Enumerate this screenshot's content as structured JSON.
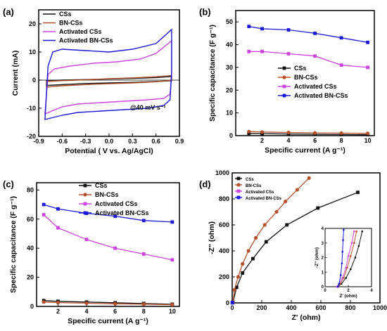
{
  "chart_data": [
    {
      "panel": "(a)",
      "type": "line",
      "xlabel": "Potential ( V vs. Ag/AgCl)",
      "ylabel": "Current (mA)",
      "xlim": [
        -0.9,
        0.9
      ],
      "ylim": [
        -20,
        25
      ],
      "xticks": [
        "-0.9",
        "-0.6",
        "-0.3",
        "0.0",
        "0.3",
        "0.6",
        "0.9"
      ],
      "yticks": [
        "-20",
        "-10",
        "0",
        "10",
        "20"
      ],
      "annotation": "@40 mV s⁻¹",
      "legend_position": "top-left",
      "series": [
        {
          "name": "CSs",
          "color": "#111111",
          "anodic": [
            [
              -0.8,
              -0.2
            ],
            [
              -0.6,
              0.0
            ],
            [
              -0.3,
              0.2
            ],
            [
              0.0,
              0.4
            ],
            [
              0.3,
              0.6
            ],
            [
              0.6,
              0.9
            ],
            [
              0.8,
              1.3
            ]
          ],
          "cathodic": [
            [
              0.8,
              -0.2
            ],
            [
              0.6,
              -0.5
            ],
            [
              0.3,
              -0.8
            ],
            [
              0.0,
              -1.0
            ],
            [
              -0.3,
              -1.2
            ],
            [
              -0.6,
              -1.6
            ],
            [
              -0.8,
              -1.9
            ]
          ]
        },
        {
          "name": "BN-CSs",
          "color": "#b5512b",
          "anodic": [
            [
              -0.8,
              -0.5
            ],
            [
              -0.6,
              -0.2
            ],
            [
              -0.3,
              0.1
            ],
            [
              0.0,
              0.5
            ],
            [
              0.3,
              0.8
            ],
            [
              0.6,
              1.2
            ],
            [
              0.8,
              1.6
            ]
          ],
          "cathodic": [
            [
              0.8,
              0.0
            ],
            [
              0.6,
              -0.6
            ],
            [
              0.3,
              -1.0
            ],
            [
              0.0,
              -1.3
            ],
            [
              -0.3,
              -1.6
            ],
            [
              -0.6,
              -2.0
            ],
            [
              -0.8,
              -2.5
            ]
          ]
        },
        {
          "name": "Activated CSs",
          "color": "#cc44dd",
          "anodic": [
            [
              -0.82,
              -12
            ],
            [
              -0.78,
              2
            ],
            [
              -0.7,
              4
            ],
            [
              -0.5,
              5
            ],
            [
              -0.2,
              6
            ],
            [
              0.1,
              6.5
            ],
            [
              0.4,
              7.5
            ],
            [
              0.6,
              9.5
            ],
            [
              0.8,
              14
            ]
          ],
          "cathodic": [
            [
              0.8,
              2
            ],
            [
              0.78,
              -5
            ],
            [
              0.7,
              -6.5
            ],
            [
              0.5,
              -7
            ],
            [
              0.2,
              -7.5
            ],
            [
              -0.1,
              -8
            ],
            [
              -0.4,
              -8.5
            ],
            [
              -0.6,
              -9.5
            ],
            [
              -0.82,
              -12
            ]
          ]
        },
        {
          "name": "Activated BN-CSs",
          "color": "#1a1ad6",
          "anodic": [
            [
              -0.82,
              -14
            ],
            [
              -0.78,
              5
            ],
            [
              -0.72,
              10
            ],
            [
              -0.6,
              11
            ],
            [
              -0.3,
              10.5
            ],
            [
              0.0,
              10
            ],
            [
              0.3,
              11
            ],
            [
              0.6,
              13
            ],
            [
              0.8,
              18
            ]
          ],
          "cathodic": [
            [
              0.8,
              3
            ],
            [
              0.78,
              -7
            ],
            [
              0.7,
              -9
            ],
            [
              0.5,
              -10
            ],
            [
              0.2,
              -10.5
            ],
            [
              -0.1,
              -11
            ],
            [
              -0.4,
              -11.5
            ],
            [
              -0.6,
              -12.5
            ],
            [
              -0.82,
              -14
            ]
          ]
        }
      ]
    },
    {
      "panel": "(b)",
      "type": "line",
      "xlabel": "Specific current (A g⁻¹)",
      "ylabel": "Specific capacitance (F g⁻¹)",
      "xlim": [
        0,
        10.5
      ],
      "ylim": [
        0,
        55
      ],
      "xticks": [
        "2",
        "4",
        "6",
        "8",
        "10"
      ],
      "yticks": [
        "0",
        "10",
        "20",
        "30",
        "40",
        "50"
      ],
      "legend_position": "center-right",
      "x": [
        1,
        2,
        4,
        6,
        8,
        10
      ],
      "series": [
        {
          "name": "CSs",
          "color": "#111111",
          "marker": "square",
          "values": [
            1.0,
            0.9,
            0.7,
            0.6,
            0.5,
            0.4
          ]
        },
        {
          "name": "BN-CSs",
          "color": "#b5512b",
          "marker": "circle",
          "values": [
            1.8,
            1.6,
            1.4,
            1.2,
            1.1,
            1.0
          ]
        },
        {
          "name": "Activated CSs",
          "color": "#cc44dd",
          "marker": "square",
          "values": [
            37,
            37,
            36,
            35,
            31,
            30
          ]
        },
        {
          "name": "Activated BN-CSs",
          "color": "#1a1ad6",
          "marker": "square",
          "values": [
            48,
            47,
            46.5,
            45,
            43,
            41
          ]
        }
      ]
    },
    {
      "panel": "(c)",
      "type": "line",
      "xlabel": "Specific current (A g⁻¹)",
      "ylabel": "Specific capacitance (F g⁻¹)",
      "xlim": [
        0.5,
        10.5
      ],
      "ylim": [
        0,
        85
      ],
      "xticks": [
        "2",
        "4",
        "6",
        "8",
        "10"
      ],
      "yticks": [
        "0",
        "20",
        "40",
        "60",
        "80"
      ],
      "legend_position": "top-right",
      "x": [
        1,
        2,
        4,
        6,
        8,
        10
      ],
      "series": [
        {
          "name": "CSs",
          "color": "#111111",
          "marker": "square",
          "values": [
            4,
            3.5,
            3,
            2.5,
            2,
            1.5
          ]
        },
        {
          "name": "BN-CSs",
          "color": "#b5512b",
          "marker": "circle",
          "values": [
            3,
            2.6,
            2.2,
            1.8,
            1.5,
            1.2
          ]
        },
        {
          "name": "Activated CSs",
          "color": "#cc44dd",
          "marker": "square",
          "values": [
            63,
            54,
            46,
            40,
            36,
            32
          ]
        },
        {
          "name": "Activated BN-CSs",
          "color": "#1a1ad6",
          "marker": "square",
          "values": [
            70,
            67,
            64,
            62,
            59,
            58
          ]
        }
      ]
    },
    {
      "panel": "(d)",
      "type": "line",
      "xlabel": "Z' (ohm)",
      "ylabel": "-Z'' (ohm)",
      "xlim": [
        0,
        1000
      ],
      "ylim": [
        0,
        1000
      ],
      "xticks": [
        "0",
        "200",
        "400",
        "600",
        "800",
        "1000"
      ],
      "yticks": [
        "0",
        "200",
        "400",
        "600",
        "800",
        "1000"
      ],
      "legend_position": "top-left",
      "series": [
        {
          "name": "CSs",
          "color": "#111111",
          "marker": "square",
          "points": [
            [
              5,
              5
            ],
            [
              30,
              120
            ],
            [
              70,
              230
            ],
            [
              140,
              340
            ],
            [
              230,
              470
            ],
            [
              370,
              600
            ],
            [
              580,
              730
            ],
            [
              850,
              850
            ]
          ]
        },
        {
          "name": "BN-CSs",
          "color": "#b5512b",
          "marker": "circle",
          "points": [
            [
              5,
              5
            ],
            [
              15,
              100
            ],
            [
              40,
              200
            ],
            [
              70,
              300
            ],
            [
              110,
              400
            ],
            [
              160,
              500
            ],
            [
              220,
              600
            ],
            [
              300,
              700
            ],
            [
              360,
              780
            ],
            [
              440,
              870
            ],
            [
              520,
              960
            ]
          ]
        },
        {
          "name": "Activated CSs",
          "color": "#cc44dd",
          "marker": "square",
          "points": [
            [
              1,
              1
            ],
            [
              2,
              3
            ]
          ]
        },
        {
          "name": "Activated BN-CSs",
          "color": "#1a1ad6",
          "marker": "square",
          "points": [
            [
              1,
              1
            ],
            [
              1.5,
              3
            ]
          ]
        }
      ],
      "inset": {
        "xlabel": "Z' (ohm)",
        "ylabel": "-Z'' (ohm)",
        "xlim": [
          0,
          4
        ],
        "ylim": [
          0,
          4
        ],
        "xticks": [
          "0",
          "2",
          "4"
        ],
        "yticks": [
          "0",
          "1",
          "2",
          "3",
          "4"
        ],
        "series": [
          {
            "name": "CSs",
            "color": "#111111",
            "points": [
              [
                1.1,
                0
              ],
              [
                1.4,
                0.2
              ],
              [
                1.8,
                0.6
              ],
              [
                2.2,
                1.2
              ],
              [
                2.6,
                2.0
              ],
              [
                2.9,
                2.8
              ],
              [
                3.2,
                3.8
              ]
            ]
          },
          {
            "name": "BN-CSs",
            "color": "#b5512b",
            "points": [
              [
                1.1,
                0
              ],
              [
                1.3,
                0.2
              ],
              [
                1.6,
                0.6
              ],
              [
                1.9,
                1.3
              ],
              [
                2.2,
                2.1
              ],
              [
                2.5,
                3.0
              ],
              [
                2.7,
                3.8
              ]
            ]
          },
          {
            "name": "Activated CSs",
            "color": "#cc44dd",
            "points": [
              [
                1.0,
                0
              ],
              [
                1.2,
                0.2
              ],
              [
                1.5,
                0.6
              ],
              [
                1.8,
                1.3
              ],
              [
                2.0,
                2.1
              ],
              [
                2.3,
                3.0
              ],
              [
                2.5,
                3.8
              ]
            ]
          },
          {
            "name": "Activated BN-CSs",
            "color": "#1a1ad6",
            "points": [
              [
                1.1,
                0
              ],
              [
                1.2,
                0.2
              ],
              [
                1.35,
                0.8
              ],
              [
                1.45,
                1.6
              ],
              [
                1.5,
                2.4
              ],
              [
                1.55,
                3.2
              ],
              [
                1.6,
                3.9
              ]
            ]
          }
        ]
      }
    }
  ]
}
